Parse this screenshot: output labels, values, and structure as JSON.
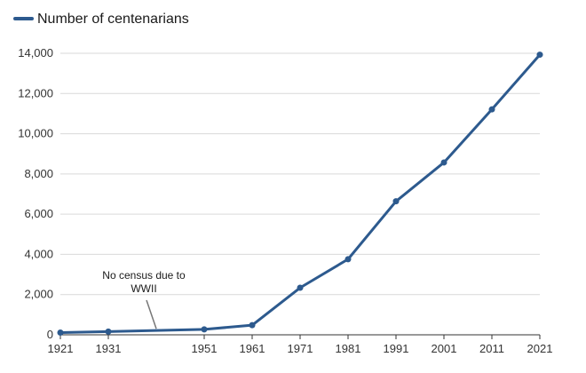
{
  "chart_data": {
    "type": "line",
    "legend": {
      "position": "top-left",
      "label": "Number of centenarians"
    },
    "series": [
      {
        "name": "Number of centenarians",
        "color": "#2d5a8e",
        "x": [
          1921,
          1931,
          1951,
          1961,
          1971,
          1981,
          1991,
          2001,
          2011,
          2021
        ],
        "values": [
          110,
          160,
          270,
          480,
          2340,
          3760,
          6640,
          8570,
          11210,
          13930
        ]
      }
    ],
    "xlim": [
      1921,
      2021
    ],
    "ylim": [
      0,
      14000
    ],
    "x_ticks": [
      "1921",
      "1931",
      "1951",
      "1961",
      "1971",
      "1981",
      "1991",
      "2001",
      "2011",
      "2021"
    ],
    "y_ticks": [
      "0",
      "2,000",
      "4,000",
      "6,000",
      "8,000",
      "10,000",
      "12,000",
      "14,000"
    ],
    "grid": true,
    "annotation": {
      "lines": [
        "No census due to",
        "WWII"
      ],
      "x": 1941,
      "y": 215
    }
  }
}
